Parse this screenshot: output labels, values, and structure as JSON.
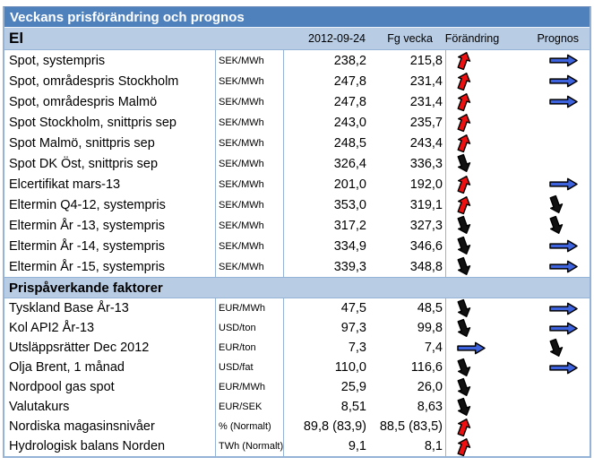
{
  "title": "Veckans prisförändring och prognos",
  "columns": {
    "date": "2012-09-24",
    "previous": "Fg vecka",
    "change": "Förändring",
    "forecast": "Prognos"
  },
  "icons": {
    "up": "red-up-arrow-icon",
    "down": "black-down-arrow-icon",
    "flat": "blue-right-arrow-icon"
  },
  "colors": {
    "title_bar_bg": "#4F81BD",
    "title_text": "#FFFFFF",
    "section_bg": "#B8CCE4",
    "border": "#95B3D7",
    "arrow_up_red": "#EE1010",
    "arrow_down_black": "#111111",
    "arrow_flat_blue": "#3E63DE"
  },
  "sections": [
    {
      "name": "El",
      "rows": [
        {
          "label": "Spot, systempris",
          "unit": "SEK/MWh",
          "current": "238,2",
          "previous": "215,8",
          "change": "up",
          "forecast": "flat"
        },
        {
          "label": "Spot, områdespris Stockholm",
          "unit": "SEK/MWh",
          "current": "247,8",
          "previous": "231,4",
          "change": "up",
          "forecast": "flat"
        },
        {
          "label": "Spot, områdespris Malmö",
          "unit": "SEK/MWh",
          "current": "247,8",
          "previous": "231,4",
          "change": "up",
          "forecast": "flat"
        },
        {
          "label": "Spot Stockholm, snittpris sep",
          "unit": "SEK/MWh",
          "current": "243,0",
          "previous": "235,7",
          "change": "up",
          "forecast": "none"
        },
        {
          "label": "Spot Malmö, snittpris sep",
          "unit": "SEK/MWh",
          "current": "248,5",
          "previous": "243,4",
          "change": "up",
          "forecast": "none"
        },
        {
          "label": "Spot DK Öst, snittpris sep",
          "unit": "SEK/MWh",
          "current": "326,4",
          "previous": "336,3",
          "change": "down",
          "forecast": "none"
        },
        {
          "label": "Elcertifikat mars-13",
          "unit": "SEK/MWh",
          "current": "201,0",
          "previous": "192,0",
          "change": "up",
          "forecast": "flat"
        },
        {
          "label": "Eltermin Q4-12, systempris",
          "unit": "SEK/MWh",
          "current": "353,0",
          "previous": "319,1",
          "change": "up",
          "forecast": "down"
        },
        {
          "label": "Eltermin År -13, systempris",
          "unit": "SEK/MWh",
          "current": "317,2",
          "previous": "327,3",
          "change": "down",
          "forecast": "down"
        },
        {
          "label": "Eltermin År -14, systempris",
          "unit": "SEK/MWh",
          "current": "334,9",
          "previous": "346,6",
          "change": "down",
          "forecast": "flat"
        },
        {
          "label": "Eltermin År -15, systempris",
          "unit": "SEK/MWh",
          "current": "339,3",
          "previous": "348,8",
          "change": "down",
          "forecast": "flat"
        }
      ]
    },
    {
      "name": "Prispåverkande faktorer",
      "rows": [
        {
          "label": "Tyskland Base År-13",
          "unit": "EUR/MWh",
          "current": "47,5",
          "previous": "48,5",
          "change": "down",
          "forecast": "flat"
        },
        {
          "label": "Kol API2 År-13",
          "unit": "USD/ton",
          "current": "97,3",
          "previous": "99,8",
          "change": "down",
          "forecast": "flat"
        },
        {
          "label": "Utsläppsrätter Dec 2012",
          "unit": "EUR/ton",
          "current": "7,3",
          "previous": "7,4",
          "change": "flat",
          "forecast": "down"
        },
        {
          "label": "Olja Brent, 1 månad",
          "unit": "USD/fat",
          "current": "110,0",
          "previous": "116,6",
          "change": "down",
          "forecast": "flat"
        },
        {
          "label": "Nordpool gas spot",
          "unit": "EUR/MWh",
          "current": "25,9",
          "previous": "26,0",
          "change": "down",
          "forecast": "none"
        },
        {
          "label": "Valutakurs",
          "unit": "EUR/SEK",
          "current": "8,51",
          "previous": "8,63",
          "change": "down",
          "forecast": "none"
        },
        {
          "label": "Nordiska magasinsnivåer",
          "unit": "% (Normalt)",
          "current": "89,8 (83,9)",
          "previous": "88,5 (83,5)",
          "change": "up",
          "forecast": "none"
        },
        {
          "label": "Hydrologisk balans Norden",
          "unit": "TWh (Normalt)",
          "current": "9,1",
          "previous": "8,1",
          "change": "up",
          "forecast": "none"
        }
      ]
    }
  ]
}
